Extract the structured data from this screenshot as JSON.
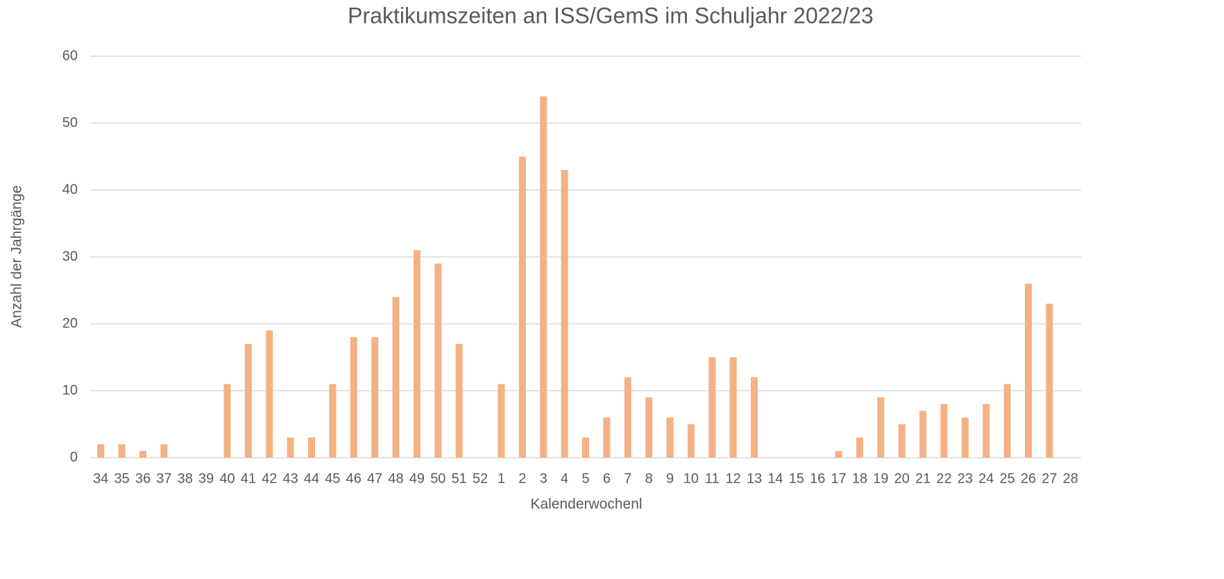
{
  "chart_data": {
    "type": "bar",
    "title": "Praktikumszeiten an ISS/GemS im Schuljahr 2022/23",
    "x_label": "Kalenderwochenl",
    "y_label": "Anzahl der Jahrgänge",
    "categories": [
      "34",
      "35",
      "36",
      "37",
      "38",
      "39",
      "40",
      "41",
      "42",
      "43",
      "44",
      "45",
      "46",
      "47",
      "48",
      "49",
      "50",
      "51",
      "52",
      "1",
      "2",
      "3",
      "4",
      "5",
      "6",
      "7",
      "8",
      "9",
      "10",
      "11",
      "12",
      "13",
      "14",
      "15",
      "16",
      "17",
      "18",
      "19",
      "20",
      "21",
      "22",
      "23",
      "24",
      "25",
      "26",
      "27",
      "28"
    ],
    "values": [
      2,
      2,
      1,
      2,
      0,
      0,
      11,
      17,
      19,
      3,
      3,
      11,
      18,
      18,
      24,
      31,
      29,
      17,
      0,
      11,
      45,
      54,
      43,
      3,
      6,
      12,
      9,
      6,
      5,
      15,
      15,
      12,
      0,
      0,
      0,
      1,
      3,
      9,
      5,
      7,
      8,
      6,
      8,
      11,
      26,
      23,
      0
    ],
    "color": "#f4b183",
    "ylim": [
      0,
      60
    ],
    "yticks": [
      0,
      10,
      20,
      30,
      40,
      50,
      60
    ],
    "grid": true
  }
}
